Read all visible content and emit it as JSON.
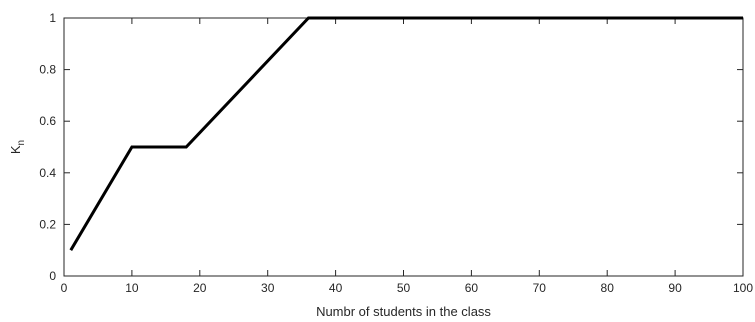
{
  "chart_data": {
    "type": "line",
    "title": "",
    "xlabel": "Numbr of students in the class",
    "ylabel_main": "K",
    "ylabel_sub": "n",
    "xlim": [
      0,
      100
    ],
    "ylim": [
      0,
      1
    ],
    "xticks": [
      0,
      10,
      20,
      30,
      40,
      50,
      60,
      70,
      80,
      90,
      100
    ],
    "yticks": [
      0,
      0.2,
      0.4,
      0.6,
      0.8,
      1
    ],
    "ytick_labels": [
      "0",
      "0.2",
      "0.4",
      "0.6",
      "0.8",
      "1"
    ],
    "grid": false,
    "box": true,
    "series": [
      {
        "color": "#000000",
        "x": [
          1,
          10,
          18,
          36,
          100
        ],
        "y": [
          0.1,
          0.5,
          0.5,
          1,
          1
        ]
      }
    ]
  }
}
